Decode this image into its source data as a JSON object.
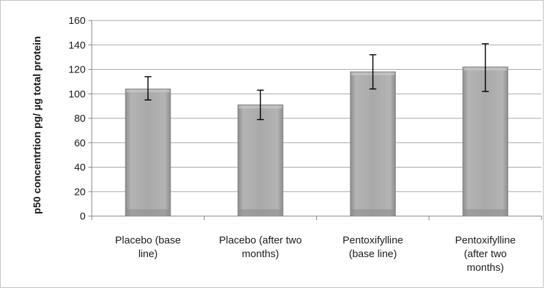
{
  "chart_data": {
    "type": "bar",
    "title": "",
    "xlabel": "",
    "ylabel": "p50 concentrtion pg/ µg total protein",
    "ylim": [
      0,
      160
    ],
    "yticks": [
      0,
      20,
      40,
      60,
      80,
      100,
      120,
      140,
      160
    ],
    "grid": true,
    "legend": "none",
    "categories": [
      [
        "Placebo (base",
        "line)"
      ],
      [
        "Placebo (after two",
        "months)"
      ],
      [
        "Pentoxifylline",
        "(base line)"
      ],
      [
        "Pentoxifylline",
        "(after two",
        "months)"
      ]
    ],
    "values": [
      104,
      91,
      118,
      122
    ],
    "error_bars": [
      {
        "low": 95,
        "high": 114
      },
      {
        "low": 79,
        "high": 103
      },
      {
        "low": 104,
        "high": 132
      },
      {
        "low": 102,
        "high": 141
      }
    ],
    "colors": {
      "bar": "#a6a6a6",
      "bar_dark": "#8c8c8c",
      "grid": "#a6a6a6",
      "axis": "#808080",
      "error": "#000000"
    }
  }
}
